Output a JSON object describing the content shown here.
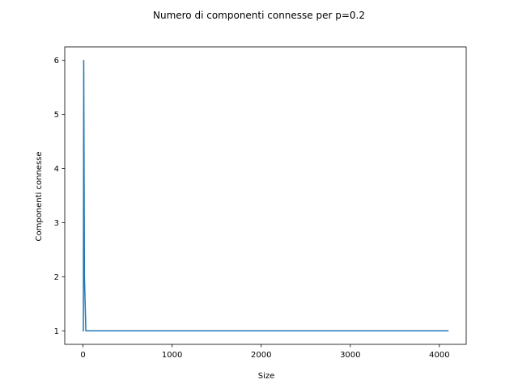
{
  "chart_data": {
    "type": "line",
    "title": "Numero di componenti connesse per p=0.2",
    "xlabel": "Size",
    "ylabel": "Componenti connesse",
    "xlim": [
      -205,
      4301
    ],
    "ylim": [
      0.75,
      6.25
    ],
    "xticks": [
      0,
      1000,
      2000,
      3000,
      4000
    ],
    "xtick_labels": [
      "0",
      "1000",
      "2000",
      "3000",
      "4000"
    ],
    "yticks": [
      1,
      2,
      3,
      4,
      5,
      6
    ],
    "ytick_labels": [
      "1",
      "2",
      "3",
      "4",
      "5",
      "6"
    ],
    "grid": false,
    "series": [
      {
        "color": "#1f77b4",
        "x": [
          4,
          8,
          16,
          32,
          64,
          128,
          256,
          512,
          1024,
          2048,
          4096
        ],
        "y": [
          1,
          6,
          2,
          1,
          1,
          1,
          1,
          1,
          1,
          1,
          1
        ]
      }
    ]
  }
}
